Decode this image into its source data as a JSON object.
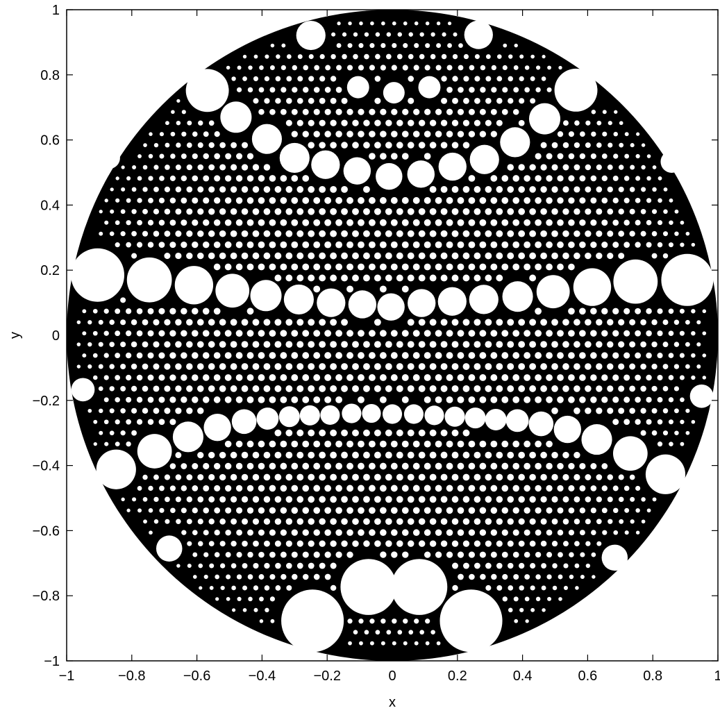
{
  "chart_data": {
    "type": "scatter",
    "title": "",
    "xlabel": "x",
    "ylabel": "y",
    "xlim": [
      -1,
      1
    ],
    "ylim": [
      -1,
      1
    ],
    "xticks": [
      -1,
      -0.8,
      -0.6,
      -0.4,
      -0.2,
      0,
      0.2,
      0.4,
      0.6,
      0.8,
      1
    ],
    "yticks": [
      -1,
      -0.8,
      -0.6,
      -0.4,
      -0.2,
      0,
      0.2,
      0.4,
      0.6,
      0.8,
      1
    ],
    "xtick_labels": [
      "−1",
      "−0.8",
      "−0.6",
      "−0.4",
      "−0.2",
      "0",
      "0.2",
      "0.4",
      "0.6",
      "0.8",
      "1"
    ],
    "ytick_labels": [
      "−1",
      "−0.8",
      "−0.6",
      "−0.4",
      "−0.2",
      "0",
      "0.2",
      "0.4",
      "0.6",
      "0.8",
      "1"
    ],
    "grid": false,
    "legend": "none",
    "disk": {
      "cx": 0,
      "cy": 0,
      "r": 1,
      "fill": "#000000"
    },
    "circle_fill": "#ffffff",
    "circles": [
      {
        "x": -0.905,
        "y": 0.185,
        "r": 0.082
      },
      {
        "x": -0.746,
        "y": 0.17,
        "r": 0.069
      },
      {
        "x": -0.609,
        "y": 0.154,
        "r": 0.059
      },
      {
        "x": -0.491,
        "y": 0.137,
        "r": 0.052
      },
      {
        "x": -0.388,
        "y": 0.122,
        "r": 0.048
      },
      {
        "x": -0.287,
        "y": 0.11,
        "r": 0.046
      },
      {
        "x": -0.188,
        "y": 0.1,
        "r": 0.044
      },
      {
        "x": -0.092,
        "y": 0.095,
        "r": 0.043
      },
      {
        "x": -0.004,
        "y": 0.087,
        "r": 0.042
      },
      {
        "x": 0.09,
        "y": 0.099,
        "r": 0.043
      },
      {
        "x": 0.184,
        "y": 0.104,
        "r": 0.044
      },
      {
        "x": 0.281,
        "y": 0.11,
        "r": 0.045
      },
      {
        "x": 0.385,
        "y": 0.119,
        "r": 0.047
      },
      {
        "x": 0.494,
        "y": 0.134,
        "r": 0.051
      },
      {
        "x": 0.614,
        "y": 0.148,
        "r": 0.058
      },
      {
        "x": 0.747,
        "y": 0.165,
        "r": 0.068
      },
      {
        "x": 0.906,
        "y": 0.17,
        "r": 0.08
      },
      {
        "x": -0.3,
        "y": 0.545,
        "r": 0.046
      },
      {
        "x": -0.205,
        "y": 0.524,
        "r": 0.044
      },
      {
        "x": -0.108,
        "y": 0.505,
        "r": 0.042
      },
      {
        "x": -0.01,
        "y": 0.488,
        "r": 0.041
      },
      {
        "x": 0.088,
        "y": 0.495,
        "r": 0.042
      },
      {
        "x": 0.185,
        "y": 0.518,
        "r": 0.043
      },
      {
        "x": 0.283,
        "y": 0.54,
        "r": 0.045
      },
      {
        "x": -0.385,
        "y": 0.603,
        "r": 0.046
      },
      {
        "x": -0.48,
        "y": 0.67,
        "r": 0.048
      },
      {
        "x": -0.568,
        "y": 0.752,
        "r": 0.066
      },
      {
        "x": 0.377,
        "y": 0.593,
        "r": 0.046
      },
      {
        "x": 0.468,
        "y": 0.665,
        "r": 0.048
      },
      {
        "x": 0.564,
        "y": 0.753,
        "r": 0.066
      },
      {
        "x": -0.25,
        "y": 0.921,
        "r": 0.045
      },
      {
        "x": 0.265,
        "y": 0.923,
        "r": 0.044
      },
      {
        "x": -0.105,
        "y": 0.762,
        "r": 0.034
      },
      {
        "x": 0.005,
        "y": 0.745,
        "r": 0.033
      },
      {
        "x": 0.114,
        "y": 0.762,
        "r": 0.034
      },
      {
        "x": -0.245,
        "y": -0.877,
        "r": 0.096
      },
      {
        "x": -0.073,
        "y": -0.773,
        "r": 0.086
      },
      {
        "x": 0.083,
        "y": -0.773,
        "r": 0.086
      },
      {
        "x": 0.242,
        "y": -0.877,
        "r": 0.096
      },
      {
        "x": -0.848,
        "y": -0.412,
        "r": 0.061
      },
      {
        "x": -0.73,
        "y": -0.356,
        "r": 0.053
      },
      {
        "x": -0.627,
        "y": -0.312,
        "r": 0.047
      },
      {
        "x": -0.537,
        "y": -0.283,
        "r": 0.042
      },
      {
        "x": -0.455,
        "y": -0.265,
        "r": 0.038
      },
      {
        "x": -0.383,
        "y": -0.256,
        "r": 0.034
      },
      {
        "x": -0.316,
        "y": -0.25,
        "r": 0.032
      },
      {
        "x": -0.253,
        "y": -0.246,
        "r": 0.031
      },
      {
        "x": -0.191,
        "y": -0.245,
        "r": 0.03
      },
      {
        "x": -0.125,
        "y": -0.24,
        "r": 0.03
      },
      {
        "x": -0.064,
        "y": -0.24,
        "r": 0.029
      },
      {
        "x": 0.0,
        "y": -0.242,
        "r": 0.03
      },
      {
        "x": 0.066,
        "y": -0.242,
        "r": 0.03
      },
      {
        "x": 0.129,
        "y": -0.246,
        "r": 0.03
      },
      {
        "x": 0.192,
        "y": -0.25,
        "r": 0.031
      },
      {
        "x": 0.255,
        "y": -0.254,
        "r": 0.032
      },
      {
        "x": 0.318,
        "y": -0.259,
        "r": 0.033
      },
      {
        "x": 0.384,
        "y": -0.262,
        "r": 0.035
      },
      {
        "x": 0.457,
        "y": -0.272,
        "r": 0.038
      },
      {
        "x": 0.538,
        "y": -0.289,
        "r": 0.042
      },
      {
        "x": 0.628,
        "y": -0.32,
        "r": 0.047
      },
      {
        "x": 0.731,
        "y": -0.363,
        "r": 0.053
      },
      {
        "x": 0.839,
        "y": -0.427,
        "r": 0.061
      },
      {
        "x": -0.95,
        "y": -0.167,
        "r": 0.036
      },
      {
        "x": 0.95,
        "y": -0.187,
        "r": 0.036
      },
      {
        "x": -0.87,
        "y": 0.545,
        "r": 0.034
      },
      {
        "x": 0.858,
        "y": 0.533,
        "r": 0.034
      },
      {
        "x": -0.685,
        "y": -0.655,
        "r": 0.04
      },
      {
        "x": 0.683,
        "y": -0.683,
        "r": 0.04
      }
    ]
  }
}
